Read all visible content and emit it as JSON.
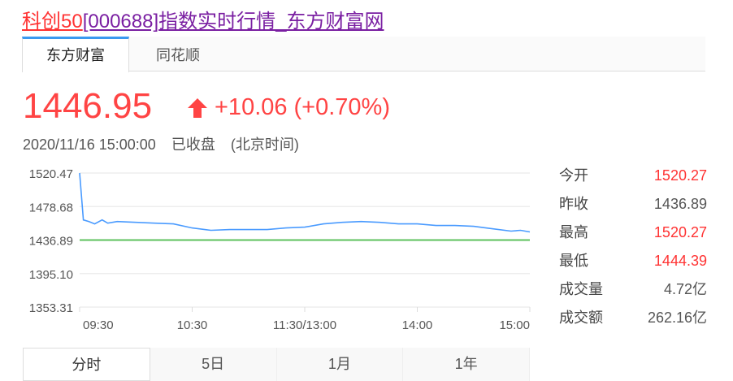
{
  "title": {
    "name": "科创50",
    "code": "[000688]",
    "suffix": "指数实时行情_东方财富网"
  },
  "source_tabs": [
    {
      "label": "东方财富",
      "active": true
    },
    {
      "label": "同花顺",
      "active": false
    }
  ],
  "quote": {
    "price": "1446.95",
    "change": "+10.06",
    "change_pct": "(+0.70%)",
    "direction_icon": "arrow-up-icon",
    "datetime": "2020/11/16 15:00:00",
    "status": "已收盘",
    "timezone": "(北京时间)"
  },
  "colors": {
    "up": "#ff4444",
    "price_line": "#4a9bff",
    "prev_close_line": "#5cc25c"
  },
  "stats": [
    {
      "label": "今开",
      "value": "1520.27",
      "color": "red"
    },
    {
      "label": "昨收",
      "value": "1436.89",
      "color": "gray"
    },
    {
      "label": "最高",
      "value": "1520.27",
      "color": "red"
    },
    {
      "label": "最低",
      "value": "1444.39",
      "color": "red"
    },
    {
      "label": "成交量",
      "value": "4.72亿",
      "color": "gray"
    },
    {
      "label": "成交额",
      "value": "262.16亿",
      "color": "gray"
    }
  ],
  "period_tabs": [
    {
      "label": "分时",
      "active": true
    },
    {
      "label": "5日",
      "active": false
    },
    {
      "label": "1月",
      "active": false
    },
    {
      "label": "1年",
      "active": false
    }
  ],
  "chart_data": {
    "type": "line",
    "y_ticks": [
      "1520.47",
      "1478.68",
      "1436.89",
      "1395.10",
      "1353.31"
    ],
    "ylim": [
      1353.31,
      1520.47
    ],
    "x_ticks": [
      "09:30",
      "10:30",
      "11:30/13:00",
      "14:00",
      "15:00"
    ],
    "xlim_minutes": [
      0,
      240
    ],
    "prev_close": 1436.89,
    "grid": true,
    "series": [
      {
        "x": [
          0,
          2,
          5,
          8,
          12,
          15,
          20,
          30,
          40,
          50,
          60,
          70,
          80,
          90,
          100,
          110,
          120,
          130,
          140,
          150,
          160,
          170,
          180,
          190,
          200,
          210,
          220,
          230,
          235,
          240
        ],
        "values": [
          1520.5,
          1462,
          1460,
          1457,
          1462,
          1458,
          1460,
          1459,
          1458,
          1457,
          1452,
          1449,
          1450,
          1450,
          1450,
          1452,
          1453,
          1457,
          1459,
          1460,
          1459,
          1457,
          1457,
          1455,
          1455,
          1454,
          1451,
          1448,
          1449,
          1447
        ]
      }
    ]
  }
}
